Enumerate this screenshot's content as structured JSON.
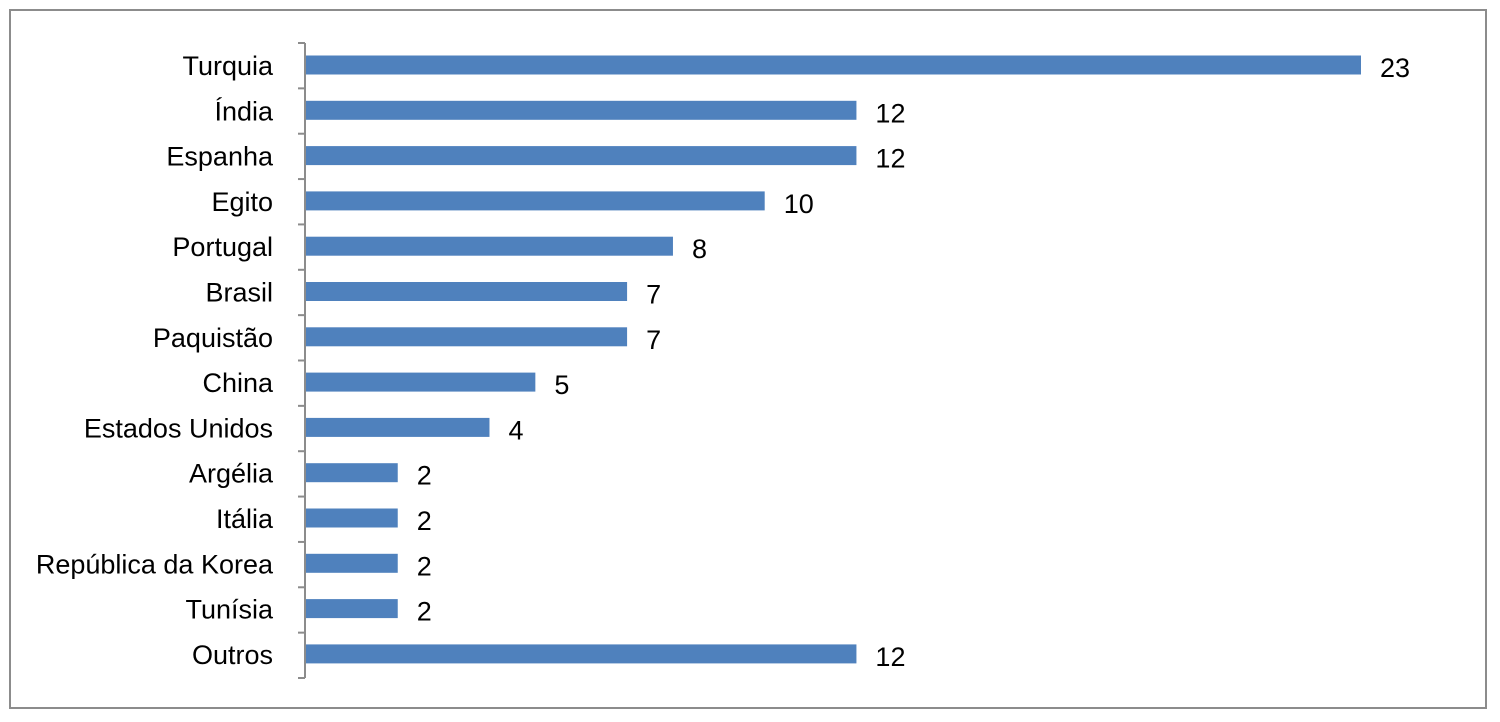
{
  "chart_data": {
    "type": "bar",
    "orientation": "horizontal",
    "title": "",
    "xlabel": "",
    "ylabel": "",
    "categories": [
      "Turquia",
      "Índia",
      "Espanha",
      "Egito",
      "Portugal",
      "Brasil",
      "Paquistão",
      "China",
      "Estados Unidos",
      "Argélia",
      "Itália",
      "República da Korea",
      "Tunísia",
      "Outros"
    ],
    "values": [
      23,
      12,
      12,
      10,
      8,
      7,
      7,
      5,
      4,
      2,
      2,
      2,
      2,
      12
    ],
    "xlim": [
      0,
      23
    ],
    "grid": false,
    "legend": "none",
    "data_labels": true,
    "bar_color": "#4f81bd",
    "axis_color": "#8c8c8c",
    "frame_color": "#8c8c8c"
  }
}
